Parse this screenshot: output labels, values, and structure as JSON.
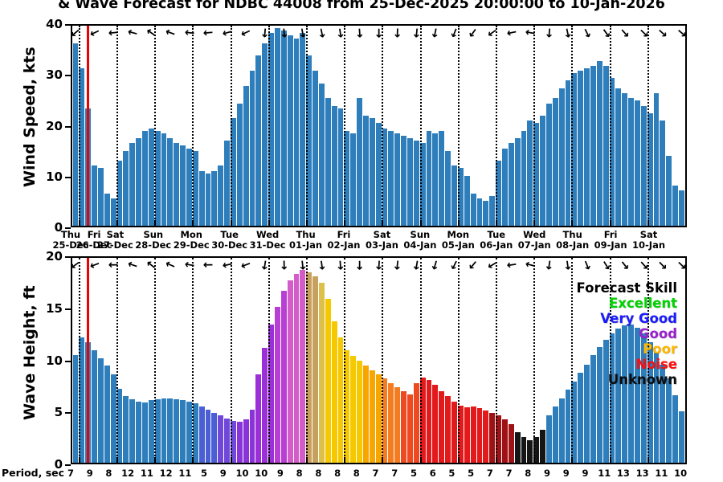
{
  "title": "& Wave Forecast for NDBC 44008 from 25-Dec-2025 20:00:00 to 10-Jan-2026",
  "now_line": {
    "color": "#ee0000",
    "position_pct": 2.4
  },
  "legend": {
    "title": "Forecast Skill",
    "items": [
      {
        "label": "Excellent",
        "color": "#00d400"
      },
      {
        "label": "Very Good",
        "color": "#1b1bff"
      },
      {
        "label": "Good",
        "color": "#9a22cc"
      },
      {
        "label": "Poor",
        "color": "#ffb800"
      },
      {
        "label": "Noise",
        "color": "#ff0f0f"
      },
      {
        "label": "Unknown",
        "color": "#0d0d0d"
      }
    ]
  },
  "day_labels": [
    {
      "day": "Thu",
      "date": "25-Dec"
    },
    {
      "day": "Fri",
      "date": "26-Dec"
    },
    {
      "day": "Sat",
      "date": "27-Dec"
    },
    {
      "day": "Sun",
      "date": "28-Dec"
    },
    {
      "day": "Mon",
      "date": "29-Dec"
    },
    {
      "day": "Tue",
      "date": "30-Dec"
    },
    {
      "day": "Wed",
      "date": "31-Dec"
    },
    {
      "day": "Thu",
      "date": "01-Jan"
    },
    {
      "day": "Fri",
      "date": "02-Jan"
    },
    {
      "day": "Sat",
      "date": "03-Jan"
    },
    {
      "day": "Sun",
      "date": "04-Jan"
    },
    {
      "day": "Mon",
      "date": "05-Jan"
    },
    {
      "day": "Tue",
      "date": "06-Jan"
    },
    {
      "day": "Wed",
      "date": "07-Jan"
    },
    {
      "day": "Thu",
      "date": "08-Jan"
    },
    {
      "day": "Fri",
      "date": "09-Jan"
    },
    {
      "day": "Sat",
      "date": "10-Jan"
    }
  ],
  "period_row": {
    "label": "Period, sec",
    "values": [
      7,
      9,
      8,
      12,
      11,
      12,
      11,
      5,
      9,
      10,
      10,
      9,
      8,
      8,
      8,
      8,
      7,
      7,
      5,
      6,
      5,
      5,
      7,
      7,
      8,
      9,
      9,
      9,
      11,
      13,
      13,
      11,
      10
    ]
  },
  "chart_data": [
    {
      "type": "bar",
      "title": "Wind Speed forecast",
      "ylabel": "Wind Speed, kts",
      "ylim": [
        0,
        40
      ],
      "yticks": [
        0,
        10,
        20,
        30,
        40
      ],
      "x_start": "25-Dec-2025 20:00:00",
      "x_end": "10-Jan-2026",
      "x_interval_hours": 4,
      "bar_color": "#2e7ebc",
      "values": [
        36.5,
        31.5,
        23.5,
        12,
        11.5,
        6.5,
        5.5,
        13,
        15,
        16.5,
        17.5,
        19,
        19.5,
        19,
        18.5,
        17.5,
        16.5,
        16,
        15.5,
        15,
        11,
        10.5,
        11,
        12,
        17,
        21.5,
        24.5,
        28,
        31,
        34,
        36.5,
        38.5,
        39.5,
        39,
        38,
        37.5,
        38.5,
        34,
        31,
        28.5,
        25.5,
        24,
        23.5,
        19,
        18.5,
        25.5,
        22,
        21.5,
        20.5,
        19.5,
        19,
        18.5,
        18,
        17.5,
        17,
        16.5,
        19,
        18.5,
        19,
        15,
        12,
        11.5,
        10,
        6.5,
        5.5,
        5,
        6,
        13,
        15.5,
        16.5,
        17.5,
        19,
        21,
        20.5,
        22,
        24.5,
        25.5,
        27.5,
        29,
        30.5,
        31,
        31.5,
        32,
        33,
        32,
        29.5,
        27.5,
        26.5,
        25.5,
        25,
        24,
        22.5,
        26.5,
        21,
        14,
        8,
        7
      ],
      "direction_arrow_angles_deg": [
        140,
        155,
        175,
        195,
        215,
        200,
        185,
        175,
        165,
        155,
        95,
        85,
        80,
        78,
        82,
        86,
        90,
        92,
        96,
        102,
        112,
        126,
        145,
        168,
        190,
        95,
        78,
        64,
        54,
        48,
        44,
        42,
        40
      ]
    },
    {
      "type": "bar",
      "title": "Wave Height forecast colored by Forecast Skill",
      "ylabel": "Wave Height, ft",
      "ylim": [
        0,
        20
      ],
      "yticks": [
        0,
        5,
        10,
        15,
        20
      ],
      "x_start": "25-Dec-2025 20:00:00",
      "x_end": "10-Jan-2026",
      "x_interval_hours": 4,
      "values": [
        10.5,
        12.2,
        11.8,
        11,
        10.2,
        9.5,
        8.6,
        7.2,
        6.5,
        6.2,
        6,
        5.9,
        6.1,
        6.2,
        6.3,
        6.3,
        6.2,
        6.1,
        6,
        5.8,
        5.5,
        5.2,
        4.9,
        4.6,
        4.3,
        4.1,
        4,
        4.2,
        5.2,
        8.6,
        11.2,
        13.5,
        15.2,
        16.8,
        17.8,
        18.4,
        18.8,
        18.6,
        18.2,
        17.6,
        16,
        13.8,
        12.2,
        11,
        10.4,
        10,
        9.5,
        9,
        8.6,
        8.2,
        7.8,
        7.4,
        7,
        6.7,
        7.8,
        8.3,
        8.1,
        7.6,
        7,
        6.5,
        6,
        5.6,
        5.4,
        5.5,
        5.3,
        5.1,
        4.9,
        4.6,
        4.2,
        3.8,
        3,
        2.5,
        2.2,
        2.5,
        3.2,
        4.6,
        5.5,
        6.3,
        7.1,
        7.9,
        8.8,
        9.6,
        10.5,
        11.3,
        12,
        12.6,
        13.1,
        13.4,
        13.5,
        13.2,
        12.6,
        11.8,
        10.8,
        9.6,
        8.2,
        6.6,
        5
      ],
      "bar_colors": [
        "#2e7ebc",
        "#2e7ebc",
        "#2e7ebc",
        "#2e7ebc",
        "#2e7ebc",
        "#2e7ebc",
        "#2e7ebc",
        "#2e7ebc",
        "#2e7ebc",
        "#2e7ebc",
        "#2e7ebc",
        "#2e7ebc",
        "#2e7ebc",
        "#2e7ebc",
        "#2e7ebc",
        "#2e7ebc",
        "#2e7ebc",
        "#2e7ebc",
        "#2e7ebc",
        "#2e7ebc",
        "#4a5fd4",
        "#4a5fd4",
        "#4a5fd4",
        "#6f48da",
        "#6f48da",
        "#6f48da",
        "#8a33d8",
        "#8a33d8",
        "#8a33d8",
        "#9b2fd8",
        "#9b2fd8",
        "#9b2fd8",
        "#b83fd4",
        "#b83fd4",
        "#d35cc8",
        "#d35cc8",
        "#d35cc8",
        "#c8a05e",
        "#c8a05e",
        "#dcc04a",
        "#f5c800",
        "#f5c800",
        "#f5c800",
        "#f5c800",
        "#f5c800",
        "#f5c800",
        "#f7a600",
        "#f7a600",
        "#f7a600",
        "#f37b20",
        "#f37b20",
        "#f37b20",
        "#ed4a21",
        "#ed4a21",
        "#ed4a21",
        "#e31a1c",
        "#e31a1c",
        "#e31a1c",
        "#e31a1c",
        "#e31a1c",
        "#e31a1c",
        "#e31a1c",
        "#e31a1c",
        "#e31a1c",
        "#e31a1c",
        "#e31a1c",
        "#9e1115",
        "#9e1115",
        "#9e1115",
        "#9e1115",
        "#151515",
        "#151515",
        "#151515",
        "#151515",
        "#151515",
        "#2e7ebc",
        "#2e7ebc",
        "#2e7ebc",
        "#2e7ebc",
        "#2e7ebc",
        "#2e7ebc",
        "#2e7ebc",
        "#2e7ebc",
        "#2e7ebc",
        "#2e7ebc",
        "#2e7ebc",
        "#2e7ebc",
        "#2e7ebc",
        "#2e7ebc",
        "#2e7ebc",
        "#2e7ebc",
        "#2e7ebc",
        "#2e7ebc",
        "#2e7ebc",
        "#2e7ebc",
        "#2e7ebc",
        "#2e7ebc"
      ],
      "direction_arrow_angles_deg": [
        144,
        159,
        179,
        199,
        219,
        204,
        189,
        179,
        169,
        159,
        99,
        89,
        84,
        82,
        86,
        90,
        94,
        96,
        100,
        106,
        116,
        130,
        149,
        172,
        194,
        99,
        82,
        68,
        58,
        52,
        48,
        46,
        44
      ]
    }
  ]
}
